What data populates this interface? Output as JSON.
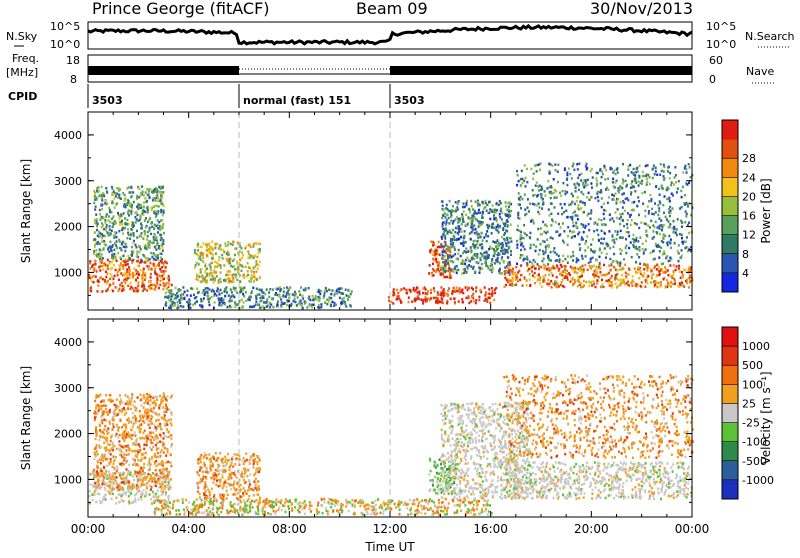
{
  "header": {
    "station": "Prince George (fitACF)",
    "beam": "Beam 09",
    "date": "30/Nov/2013"
  },
  "strip_labels": {
    "nsky": "N.Sky",
    "nsearch": "N.Search",
    "freq_line1": "Freq.",
    "freq_line2": "[MHz]",
    "nave": "Nave",
    "cpid": "CPID"
  },
  "strip_ticks": {
    "noise_top": "10^5",
    "noise_bottom": "10^0",
    "noise_right_top": "10^5",
    "noise_right_bottom": "10^0",
    "freq_top": "18",
    "freq_bottom": "8",
    "nave_top": "60",
    "nave_bottom": "0"
  },
  "cpid_segments": [
    {
      "label": "3503",
      "start_hour": 0,
      "end_hour": 6
    },
    {
      "label": "normal (fast) 151",
      "start_hour": 6,
      "end_hour": 12
    },
    {
      "label": "3503",
      "start_hour": 12,
      "end_hour": 24
    }
  ],
  "chart_data": [
    {
      "type": "heatmap",
      "quantity": "Power",
      "xlabel": "",
      "ylabel": "Slant Range [km]",
      "xlim_hours": [
        0,
        24
      ],
      "ylim_km": [
        180,
        4500
      ],
      "yticks": [
        "1000",
        "2000",
        "3000",
        "4000"
      ],
      "colorbar_label": "Power [dB]",
      "colorbar_ticks": [
        "4",
        "8",
        "12",
        "16",
        "20",
        "24",
        "28"
      ],
      "colorbar_colors": [
        "#1426e0",
        "#2b55b3",
        "#2f7a66",
        "#57a15c",
        "#98bf3c",
        "#f2c21a",
        "#f28a12",
        "#e05010",
        "#e01c12"
      ],
      "scatter_regions": [
        {
          "start_hour": 0.0,
          "end_hour": 3.3,
          "range_min": 600,
          "range_max": 1300,
          "level": 0.8
        },
        {
          "start_hour": 0.2,
          "end_hour": 3.0,
          "range_min": 1300,
          "range_max": 2900,
          "level": 0.35
        },
        {
          "start_hour": 4.2,
          "end_hour": 6.8,
          "range_min": 800,
          "range_max": 1700,
          "level": 0.55
        },
        {
          "start_hour": 3.0,
          "end_hour": 10.5,
          "range_min": 250,
          "range_max": 700,
          "level": 0.3
        },
        {
          "start_hour": 11.9,
          "end_hour": 16.2,
          "range_min": 350,
          "range_max": 700,
          "level": 0.95
        },
        {
          "start_hour": 13.5,
          "end_hour": 14.4,
          "range_min": 900,
          "range_max": 1700,
          "level": 0.85
        },
        {
          "start_hour": 14.0,
          "end_hour": 16.8,
          "range_min": 1000,
          "range_max": 2600,
          "level": 0.3
        },
        {
          "start_hour": 16.5,
          "end_hour": 24.0,
          "range_min": 700,
          "range_max": 1200,
          "level": 0.75
        },
        {
          "start_hour": 17.0,
          "end_hour": 24.0,
          "range_min": 1200,
          "range_max": 3400,
          "level": 0.3
        }
      ]
    },
    {
      "type": "heatmap",
      "quantity": "Velocity",
      "xlabel": "Time UT",
      "ylabel": "Slant Range [km]",
      "xlim_hours": [
        0,
        24
      ],
      "ylim_km": [
        180,
        4500
      ],
      "xticks": [
        "00:00",
        "04:00",
        "08:00",
        "12:00",
        "16:00",
        "20:00",
        "00:00"
      ],
      "yticks": [
        "1000",
        "2000",
        "3000",
        "4000"
      ],
      "colorbar_label": "Velocity [m s⁻¹]",
      "colorbar_ticks": [
        "1000",
        "500",
        "100",
        "25",
        "-25",
        "-100",
        "-500",
        "-1000"
      ],
      "colorbar_colors": [
        "#1b2fbf",
        "#2a5f9a",
        "#2e8a4a",
        "#5bc238",
        "#c8c8c8",
        "#f0a020",
        "#f07010",
        "#e03512",
        "#e01010"
      ],
      "scatter_regions": [
        {
          "start_hour": 0.0,
          "end_hour": 3.2,
          "range_min": 500,
          "range_max": 1200,
          "kind": "gray"
        },
        {
          "start_hour": 0.2,
          "end_hour": 3.3,
          "range_min": 800,
          "range_max": 2900,
          "kind": "orange"
        },
        {
          "start_hour": 4.3,
          "end_hour": 6.8,
          "range_min": 600,
          "range_max": 1600,
          "kind": "orange"
        },
        {
          "start_hour": 2.5,
          "end_hour": 16.0,
          "range_min": 250,
          "range_max": 600,
          "kind": "mixed"
        },
        {
          "start_hour": 13.5,
          "end_hour": 14.6,
          "range_min": 700,
          "range_max": 1500,
          "kind": "green"
        },
        {
          "start_hour": 14.0,
          "end_hour": 17.5,
          "range_min": 600,
          "range_max": 2700,
          "kind": "gray"
        },
        {
          "start_hour": 16.5,
          "end_hour": 24.0,
          "range_min": 600,
          "range_max": 1400,
          "kind": "gray"
        },
        {
          "start_hour": 16.5,
          "end_hour": 24.0,
          "range_min": 1500,
          "range_max": 3300,
          "kind": "orange"
        }
      ]
    }
  ]
}
